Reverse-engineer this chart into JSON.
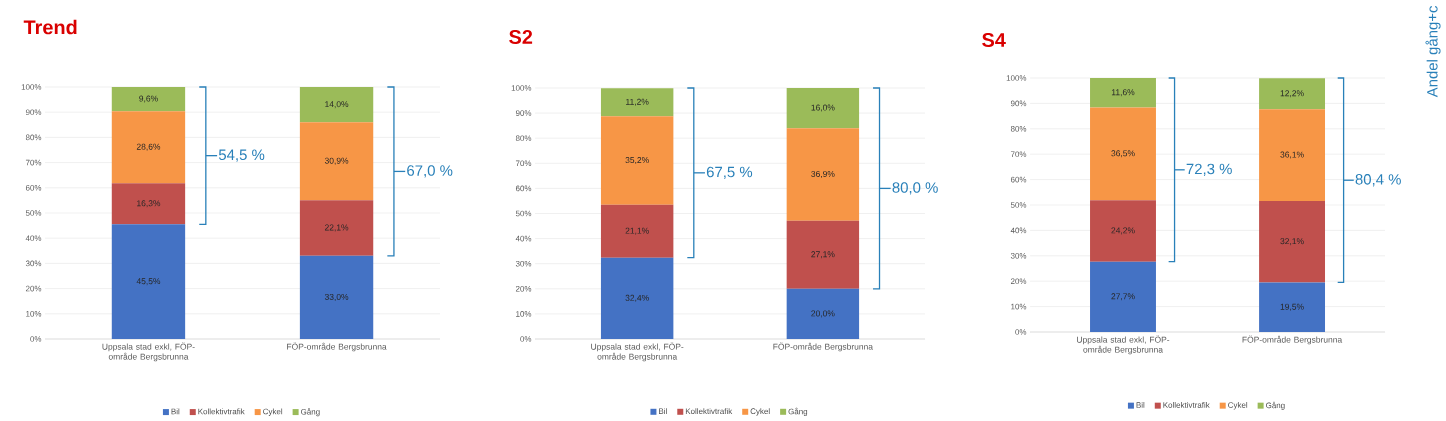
{
  "chart_data": [
    {
      "type": "bar",
      "stacked": true,
      "title": "Trend",
      "categories": [
        "Uppsala stad exkl, FÖP-område Bergsbrunna",
        "FÖP-område Bergsbrunna"
      ],
      "series": [
        {
          "name": "Bil",
          "color": "#4472c4",
          "values": [
            45.5,
            33.0
          ],
          "value_labels": [
            "45,5%",
            "33,0%"
          ]
        },
        {
          "name": "Kollektivtrafik",
          "color": "#c0504d",
          "values": [
            16.3,
            22.1
          ],
          "value_labels": [
            "16,3%",
            "22,1%"
          ]
        },
        {
          "name": "Cykel",
          "color": "#f79646",
          "values": [
            28.6,
            30.9
          ],
          "value_labels": [
            "28,6%",
            "30,9%"
          ]
        },
        {
          "name": "Gång",
          "color": "#9bbb59",
          "values": [
            9.6,
            14.0
          ],
          "value_labels": [
            "9,6%",
            "14,0%"
          ]
        }
      ],
      "ylim": [
        0,
        100
      ],
      "yticks": [
        {
          "value": 0,
          "label": "0%"
        },
        {
          "value": 10,
          "label": "10%"
        },
        {
          "value": 20,
          "label": "20%"
        },
        {
          "value": 30,
          "label": "30%"
        },
        {
          "value": 40,
          "label": "40%"
        },
        {
          "value": 50,
          "label": "50%"
        },
        {
          "value": 60,
          "label": "60%"
        },
        {
          "value": 70,
          "label": "70%"
        },
        {
          "value": 80,
          "label": "80%"
        },
        {
          "value": 90,
          "label": "90%"
        },
        {
          "value": 100,
          "label": "100%"
        }
      ],
      "grid": "y",
      "legend": "bottom",
      "annotations": [
        "54,5 %",
        "67,0 %"
      ]
    },
    {
      "type": "bar",
      "stacked": true,
      "title": "S2",
      "categories": [
        "Uppsala stad exkl, FÖP-område Bergsbrunna",
        "FÖP-område Bergsbrunna"
      ],
      "series": [
        {
          "name": "Bil",
          "color": "#4472c4",
          "values": [
            32.4,
            20.0
          ],
          "value_labels": [
            "32,4%",
            "20,0%"
          ]
        },
        {
          "name": "Kollektivtrafik",
          "color": "#c0504d",
          "values": [
            21.1,
            27.1
          ],
          "value_labels": [
            "21,1%",
            "27,1%"
          ]
        },
        {
          "name": "Cykel",
          "color": "#f79646",
          "values": [
            35.2,
            36.9
          ],
          "value_labels": [
            "35,2%",
            "36,9%"
          ]
        },
        {
          "name": "Gång",
          "color": "#9bbb59",
          "values": [
            11.2,
            16.0
          ],
          "value_labels": [
            "11,2%",
            "16,0%"
          ]
        }
      ],
      "ylim": [
        0,
        100
      ],
      "yticks": [
        {
          "value": 0,
          "label": "0%"
        },
        {
          "value": 10,
          "label": "10%"
        },
        {
          "value": 20,
          "label": "20%"
        },
        {
          "value": 30,
          "label": "30%"
        },
        {
          "value": 40,
          "label": "40%"
        },
        {
          "value": 50,
          "label": "50%"
        },
        {
          "value": 60,
          "label": "60%"
        },
        {
          "value": 70,
          "label": "70%"
        },
        {
          "value": 80,
          "label": "80%"
        },
        {
          "value": 90,
          "label": "90%"
        },
        {
          "value": 100,
          "label": "100%"
        }
      ],
      "grid": "y",
      "legend": "bottom",
      "annotations": [
        "67,5 %",
        "80,0 %"
      ]
    },
    {
      "type": "bar",
      "stacked": true,
      "title": "S4",
      "categories": [
        "Uppsala stad exkl, FÖP-område Bergsbrunna",
        "FÖP-område Bergsbrunna"
      ],
      "series": [
        {
          "name": "Bil",
          "color": "#4472c4",
          "values": [
            27.7,
            19.5
          ],
          "value_labels": [
            "27,7%",
            "19,5%"
          ]
        },
        {
          "name": "Kollektivtrafik",
          "color": "#c0504d",
          "values": [
            24.2,
            32.1
          ],
          "value_labels": [
            "24,2%",
            "32,1%"
          ]
        },
        {
          "name": "Cykel",
          "color": "#f79646",
          "values": [
            36.5,
            36.1
          ],
          "value_labels": [
            "36,5%",
            "36,1%"
          ]
        },
        {
          "name": "Gång",
          "color": "#9bbb59",
          "values": [
            11.6,
            12.2
          ],
          "value_labels": [
            "11,6%",
            "12,2%"
          ]
        }
      ],
      "ylim": [
        0,
        100
      ],
      "yticks": [
        {
          "value": 0,
          "label": "0%"
        },
        {
          "value": 10,
          "label": "10%"
        },
        {
          "value": 20,
          "label": "20%"
        },
        {
          "value": 30,
          "label": "30%"
        },
        {
          "value": 40,
          "label": "40%"
        },
        {
          "value": 50,
          "label": "50%"
        },
        {
          "value": 60,
          "label": "60%"
        },
        {
          "value": 70,
          "label": "70%"
        },
        {
          "value": 80,
          "label": "80%"
        },
        {
          "value": 90,
          "label": "90%"
        },
        {
          "value": 100,
          "label": "100%"
        }
      ],
      "grid": "y",
      "legend": "bottom",
      "annotations": [
        "72,3 %",
        "80,4 %",
        "Andel gång+c"
      ]
    }
  ]
}
